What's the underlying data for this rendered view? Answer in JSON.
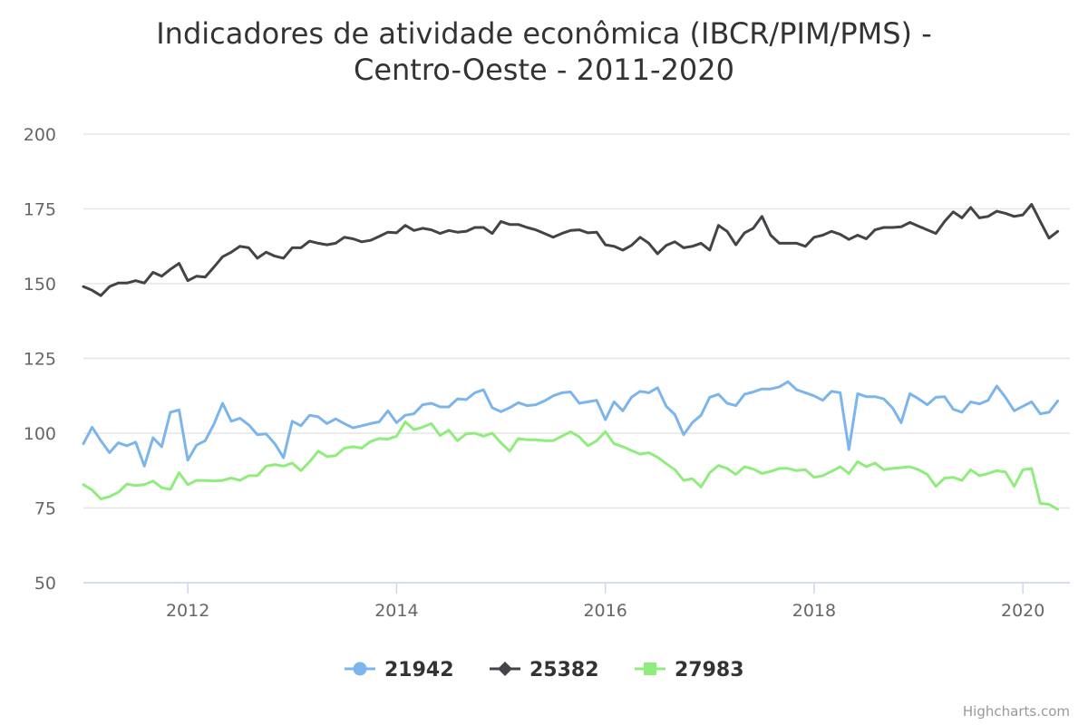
{
  "chart_data": {
    "type": "line",
    "title_line1": "Indicadores de atividade econômica (IBCR/PIM/PMS) -",
    "title_line2": "Centro-Oeste - 2011-2020",
    "xlabel": "",
    "ylabel": "",
    "xlim": [
      2011.0,
      2020.45
    ],
    "ylim": [
      50,
      200
    ],
    "yticks": [
      "50",
      "75",
      "100",
      "125",
      "150",
      "175",
      "200"
    ],
    "xticks": [
      "2012",
      "2014",
      "2016",
      "2018",
      "2020"
    ],
    "grid": true,
    "legend_position": "bottom-center",
    "x_start": "2011-01",
    "x_step": "month",
    "series": [
      {
        "name": "21942",
        "color": "#7cb5ec",
        "marker": "circle",
        "values": [
          96.5,
          102,
          97.5,
          93.5,
          96.8,
          95.8,
          97,
          89,
          98.5,
          95.5,
          107,
          107.8,
          91,
          96,
          97.5,
          103,
          110,
          104,
          105,
          102.8,
          99.5,
          99.8,
          96.5,
          91.8,
          104,
          102.5,
          106,
          105.5,
          103.2,
          104.8,
          103.2,
          101.8,
          102.5,
          103.2,
          103.8,
          107.5,
          103.5,
          106,
          106.5,
          109.5,
          110,
          108.8,
          108.8,
          111.5,
          111.2,
          113.5,
          114.5,
          108.5,
          107.2,
          108.5,
          110.2,
          109.2,
          109.5,
          110.8,
          112.5,
          113.5,
          113.8,
          110,
          110.5,
          111,
          104.5,
          110.5,
          107.5,
          112,
          114,
          113.5,
          115.2,
          109,
          106.2,
          99.5,
          103.5,
          106,
          112,
          113,
          110,
          109.2,
          113,
          113.8,
          114.8,
          114.8,
          115.5,
          117.2,
          114.5,
          113.5,
          112.5,
          111,
          114,
          113.5,
          94.5,
          113.2,
          112.2,
          112.2,
          111.5,
          108.5,
          103.5,
          113.2,
          111.5,
          109.5,
          112,
          112.2,
          108,
          107,
          110.5,
          109.8,
          111,
          115.8,
          112,
          107.5,
          109,
          110.5,
          106.5,
          107,
          110.8
        ]
      },
      {
        "name": "25382",
        "color": "#434348",
        "marker": "diamond",
        "values": [
          149,
          147.8,
          146,
          149,
          150.2,
          150.2,
          151,
          150.2,
          153.8,
          152.5,
          154.8,
          156.8,
          151,
          152.5,
          152.2,
          155.5,
          159,
          160.5,
          162.5,
          162,
          158.5,
          160.5,
          159.2,
          158.5,
          162,
          162,
          164.2,
          163.5,
          163,
          163.5,
          165.5,
          165,
          164,
          164.5,
          165.8,
          167.2,
          167,
          169.5,
          167.8,
          168.5,
          168,
          166.8,
          167.8,
          167.2,
          167.5,
          168.8,
          168.8,
          166.8,
          170.8,
          169.8,
          169.8,
          168.8,
          168,
          166.8,
          165.5,
          166.8,
          167.8,
          168,
          167,
          167.2,
          163,
          162.5,
          161.2,
          162.8,
          165.5,
          163.5,
          160,
          162.8,
          164,
          162,
          162.5,
          163.5,
          161.2,
          169.5,
          167.5,
          163,
          167,
          168.5,
          172.5,
          166.2,
          163.5,
          163.5,
          163.5,
          162.5,
          165.5,
          166.2,
          167.5,
          166.5,
          164.8,
          166.2,
          165,
          168,
          168.8,
          168.8,
          169,
          170.5,
          169.2,
          168,
          166.8,
          170.8,
          174,
          172,
          175.5,
          172,
          172.5,
          174.2,
          173.5,
          172.5,
          173,
          176.5,
          170.8,
          165.2,
          167.5
        ]
      },
      {
        "name": "27983",
        "color": "#90ed7d",
        "marker": "square",
        "values": [
          82.8,
          81,
          78,
          78.8,
          80.2,
          83,
          82.5,
          82.8,
          84,
          81.8,
          81.2,
          86.8,
          82.8,
          84.2,
          84.2,
          84,
          84.2,
          85,
          84.2,
          85.8,
          85.8,
          89,
          89.5,
          89,
          90,
          87.5,
          90.5,
          94,
          92.2,
          92.5,
          95,
          95.5,
          95,
          97.2,
          98.2,
          98,
          99,
          103.8,
          101.2,
          102,
          103.2,
          99.2,
          101,
          97.5,
          99.8,
          100,
          99,
          100,
          96.8,
          94,
          98.2,
          97.8,
          97.8,
          97.5,
          97.5,
          99,
          100.5,
          98.8,
          95.8,
          97.5,
          100.5,
          96.5,
          95.5,
          94.2,
          93,
          93.5,
          92,
          89.8,
          87.8,
          84.2,
          84.8,
          82,
          86.8,
          89.2,
          88.2,
          86.2,
          88.8,
          88,
          86.5,
          87.2,
          88.2,
          88.2,
          87.5,
          87.8,
          85.2,
          85.8,
          87.2,
          88.8,
          86.5,
          90.5,
          88.8,
          90,
          87.8,
          88.2,
          88.5,
          88.8,
          87.8,
          86.2,
          82.2,
          85,
          85.2,
          84.2,
          87.8,
          85.8,
          86.5,
          87.5,
          87,
          82.2,
          87.8,
          88.2,
          76.5,
          76.2,
          74.5
        ]
      }
    ]
  },
  "credits": "Highcharts.com"
}
